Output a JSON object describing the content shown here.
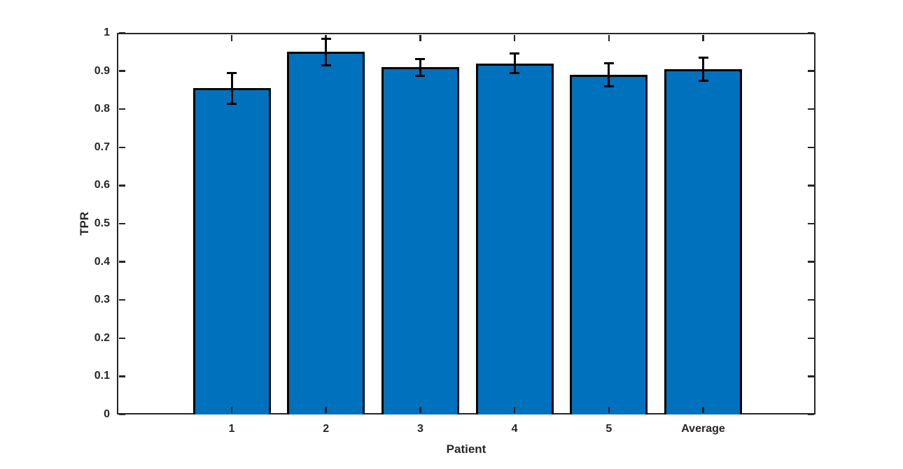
{
  "figure": {
    "background_color": "#ffffff"
  },
  "chart_data": {
    "type": "bar",
    "title": "",
    "xlabel": "Patient",
    "ylabel": "TPR",
    "categories": [
      "1",
      "2",
      "3",
      "4",
      "5",
      "Average"
    ],
    "values": [
      0.855,
      0.95,
      0.91,
      0.92,
      0.89,
      0.905
    ],
    "error_bars": [
      0.04,
      0.035,
      0.022,
      0.026,
      0.031,
      0.03
    ],
    "ylim": [
      0,
      1
    ],
    "yticks": [
      0,
      0.1,
      0.2,
      0.3,
      0.4,
      0.5,
      0.6,
      0.7,
      0.8,
      0.9,
      1
    ],
    "ytick_labels": [
      "0",
      "0.1",
      "0.2",
      "0.3",
      "0.4",
      "0.5",
      "0.6",
      "0.7",
      "0.8",
      "0.9",
      "1"
    ],
    "grid": false,
    "legend": null,
    "box": true,
    "tick_direction": "in",
    "bar_color": "#0072BD",
    "bar_edge_color": "#000000",
    "error_bar_color": "#000000",
    "axis_color": "#262626",
    "label_color": "#262626"
  }
}
